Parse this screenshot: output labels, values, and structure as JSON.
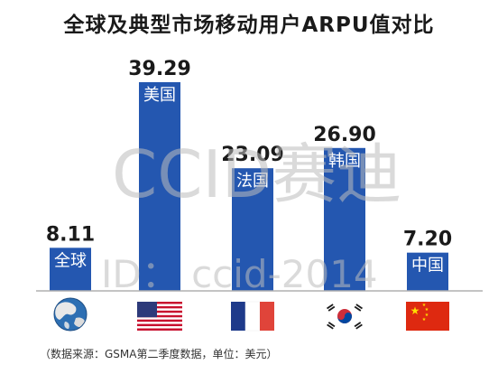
{
  "chart_data": {
    "type": "bar",
    "title": "全球及典型市场移动用户ARPU值对比",
    "categories": [
      "全球",
      "美国",
      "法国",
      "韩国",
      "中国"
    ],
    "values": [
      8.11,
      39.29,
      23.09,
      26.9,
      7.2
    ],
    "value_labels": [
      "8.11",
      "39.29",
      "23.09",
      "26.90",
      "7.20"
    ],
    "flag_icons": [
      "globe-icon",
      "us-flag-icon",
      "france-flag-icon",
      "korea-flag-icon",
      "china-flag-icon"
    ],
    "bar_color": "#2457b0",
    "ylim": [
      0,
      42
    ],
    "grid": false,
    "legend": "none",
    "note": "（数据来源：GSMA第二季度数据，单位：美元）"
  },
  "watermark": {
    "brand": "CCID赛迪",
    "id_text": "ID： ccid-2014"
  }
}
